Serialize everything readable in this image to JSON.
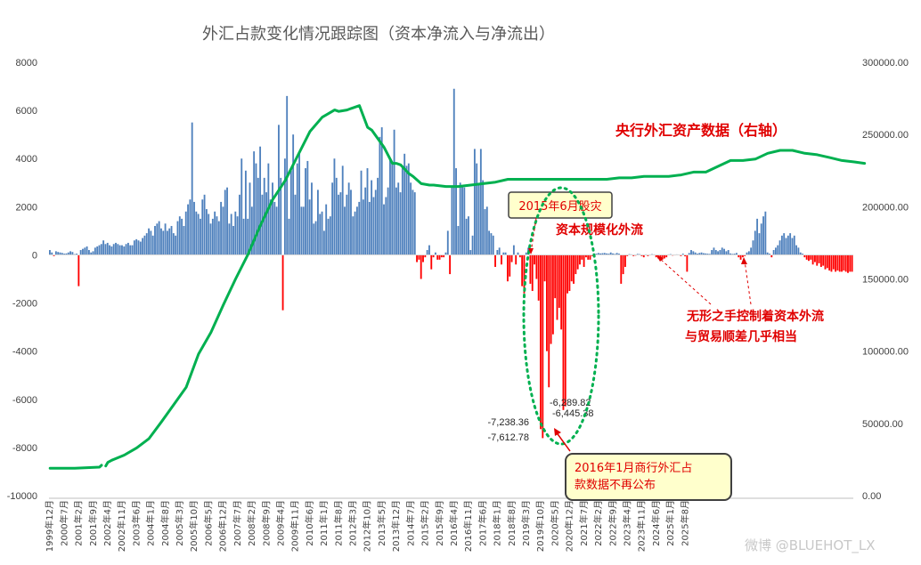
{
  "chart_data": {
    "type": "bar+line",
    "title": "外汇占款变化情况跟踪图（资本净流入与净流出）",
    "left_axis": {
      "min": -10000,
      "max": 8000,
      "step": 2000,
      "tick_labels": [
        "8000",
        "6000",
        "4000",
        "2000",
        "0",
        "-2000",
        "-4000",
        "-6000",
        "-8000",
        "-10000"
      ]
    },
    "right_axis": {
      "min": 0,
      "max": 300000,
      "step": 50000,
      "tick_labels": [
        "300000.00",
        "250000.00",
        "200000.00",
        "150000.00",
        "100000.00",
        "50000.00",
        "0.00"
      ]
    },
    "x_labels": [
      "1999年12月",
      "2000年7月",
      "2001年2月",
      "2001年9月",
      "2002年4月",
      "2002年11月",
      "2003年6月",
      "2004年1月",
      "2004年8月",
      "2005年3月",
      "2005年10月",
      "2006年5月",
      "2006年12月",
      "2007年7月",
      "2008年2月",
      "2008年9月",
      "2009年4月",
      "2009年11月",
      "2010年6月",
      "2011年1月",
      "2011年8月",
      "2012年3月",
      "2012年10月",
      "2013年5月",
      "2013年12月",
      "2014年7月",
      "2015年2月",
      "2015年9月",
      "2016年4月",
      "2016年11月",
      "2017年6月",
      "2018年1月",
      "2018年8月",
      "2019年3月",
      "2019年10月",
      "2020年5月",
      "2020年12月",
      "2021年7月",
      "2022年2月",
      "2022年9月",
      "2023年4月",
      "2023年11月",
      "2024年6月",
      "2025年1月",
      "2025年8月"
    ],
    "bar_series": {
      "name": "",
      "positive_color": "#4f81bd",
      "negative_color": "#ff0000",
      "values": [
        200,
        100,
        -50,
        150,
        120,
        100,
        80,
        50,
        60,
        100,
        150,
        120,
        30,
        50,
        -1300,
        200,
        250,
        300,
        350,
        200,
        100,
        150,
        300,
        350,
        400,
        450,
        600,
        450,
        500,
        400,
        350,
        450,
        500,
        450,
        400,
        400,
        350,
        450,
        500,
        400,
        400,
        600,
        650,
        600,
        550,
        700,
        800,
        900,
        1100,
        1000,
        800,
        1200,
        1300,
        1400,
        1100,
        1000,
        1300,
        1000,
        1100,
        1200,
        900,
        800,
        1400,
        1600,
        1500,
        1200,
        1800,
        2100,
        2300,
        5500,
        2200,
        1800,
        1700,
        1500,
        2300,
        2500,
        1900,
        1700,
        1300,
        1500,
        1800,
        1600,
        1400,
        2200,
        2000,
        2700,
        2800,
        1300,
        1700,
        1200,
        1800,
        1600,
        2500,
        4000,
        1500,
        3500,
        1500,
        3000,
        2000,
        4300,
        3800,
        3200,
        4500,
        2500,
        3200,
        2600,
        3800,
        2300,
        3000,
        2200,
        2000,
        5400,
        3200,
        -2300,
        4000,
        6600,
        1500,
        3500,
        5000,
        2500,
        3800,
        4300,
        2000,
        2000,
        3600,
        3900,
        2300,
        3000,
        1300,
        1400,
        2700,
        1700,
        1800,
        1000,
        2100,
        1500,
        1600,
        3000,
        4000,
        3200,
        2500,
        2600,
        3700,
        2000,
        2500,
        3000,
        2700,
        1600,
        1800,
        2000,
        2200,
        3500,
        2300,
        2800,
        3600,
        2200,
        3100,
        2400,
        2700,
        3200,
        4900,
        5300,
        2100,
        2400,
        2800,
        4000,
        3800,
        5200,
        2800,
        3000,
        2600,
        3600,
        4200,
        3700,
        3800,
        3000,
        2700,
        2600,
        -300,
        -200,
        -1000,
        -300,
        -100,
        200,
        400,
        -600,
        -100,
        100,
        -200,
        -200,
        -100,
        -100,
        100,
        1000,
        -800,
        2800,
        6900,
        3600,
        1200,
        3000,
        2900,
        2800,
        1500,
        1600,
        200,
        800,
        4400,
        3800,
        2900,
        4400,
        3100,
        1900,
        2000,
        1000,
        900,
        800,
        -500,
        200,
        300,
        -400,
        100,
        100,
        -1100,
        -900,
        -300,
        400,
        -400,
        100,
        -100,
        -1300,
        -1600,
        100,
        300,
        -1200,
        -1500,
        -400,
        -1000,
        -1900,
        -7238.36,
        -7612.78,
        -1100,
        -4000,
        -5500,
        -3700,
        -3300,
        -1800,
        -2700,
        -2200,
        -3100,
        -6445.38,
        -6289.82,
        -1600,
        -1500,
        -1100,
        -1200,
        -800,
        -600,
        -400,
        -200,
        -500,
        -100,
        -200,
        -200,
        -50,
        -100,
        50,
        80,
        60,
        70,
        80,
        60,
        50,
        100,
        60,
        40,
        80,
        50,
        -1200,
        -800,
        -500,
        -50,
        30,
        20,
        -50,
        -30,
        40,
        30,
        -50,
        -100,
        20,
        -50,
        -10,
        30,
        20,
        -100,
        -150,
        -200,
        -200,
        -150,
        -100,
        20,
        30,
        -30,
        -20,
        20,
        10,
        -50,
        50,
        -60,
        -700,
        80,
        200,
        150,
        100,
        50,
        80,
        100,
        70,
        60,
        50,
        40,
        200,
        300,
        200,
        150,
        200,
        300,
        250,
        150,
        200,
        60,
        40,
        50,
        80,
        -100,
        -200,
        -100,
        -50,
        100,
        150,
        300,
        600,
        1000,
        1500,
        900,
        1300,
        1600,
        1800,
        100,
        50,
        -100,
        200,
        300,
        400,
        600,
        800,
        900,
        700,
        800,
        900,
        700,
        800,
        400,
        300,
        100,
        50,
        -100,
        -200,
        -250,
        -200,
        -400,
        -300,
        -450,
        -350,
        -500,
        -450,
        -600,
        -550,
        -650,
        -700,
        -600,
        -700,
        -650,
        -700,
        -700,
        -650,
        -700,
        -750,
        -700,
        -700
      ]
    },
    "line_series": {
      "name": "",
      "color": "#00b050",
      "months": [
        0,
        12,
        24,
        25,
        26,
        27,
        28,
        30,
        36,
        42,
        48,
        54,
        60,
        66,
        72,
        78,
        84,
        90,
        96,
        102,
        108,
        114,
        120,
        126,
        132,
        138,
        140,
        144,
        146,
        150,
        154,
        156,
        162,
        166,
        168,
        170,
        174,
        176,
        180,
        184,
        186,
        192,
        198,
        204,
        210,
        216,
        222,
        228,
        234,
        240,
        246,
        252,
        258,
        264,
        270,
        276,
        282,
        288,
        294,
        300,
        306,
        312,
        318,
        324,
        330,
        336,
        342,
        348,
        354,
        360,
        366,
        372,
        378,
        384,
        390,
        395
      ],
      "values": [
        19000,
        19000,
        19700,
        21000,
        null,
        20500,
        23000,
        24500,
        28000,
        33000,
        39500,
        51000,
        63000,
        75000,
        98000,
        113000,
        132000,
        150000,
        167000,
        187000,
        205000,
        218000,
        235000,
        252000,
        262000,
        267000,
        266000,
        267000,
        268000,
        270000,
        255000,
        253000,
        241000,
        230000,
        230000,
        229000,
        223000,
        221000,
        216000,
        215000,
        215000,
        214000,
        214000,
        215000,
        216000,
        217000,
        219000,
        219000,
        219000,
        219000,
        219000,
        219000,
        219000,
        219000,
        219000,
        220000,
        220000,
        221000,
        221000,
        221000,
        222000,
        224000,
        224000,
        228000,
        232000,
        232000,
        233000,
        237000,
        239000,
        239000,
        237000,
        236000,
        234000,
        232000,
        231000,
        230000
      ]
    },
    "data_labels": [
      "-7,238.36",
      "-7,612.78",
      "-6,289.82",
      "-6,445.38"
    ],
    "annotations": {
      "right_axis_note": "央行外汇资产数据（右轴）",
      "crash_box": "2015年6月股灾",
      "outflow_note": "资本规模化外流",
      "hidden_hand_line1": "无形之手控制着资本外流",
      "hidden_hand_line2": "与贸易顺差几乎相当",
      "stop_box_line1": "2016年1月商行外汇占",
      "stop_box_line2": "款数据不再公布"
    },
    "watermark": "微博 @BLUEHOT_LX",
    "grid": false,
    "legend": "none"
  }
}
